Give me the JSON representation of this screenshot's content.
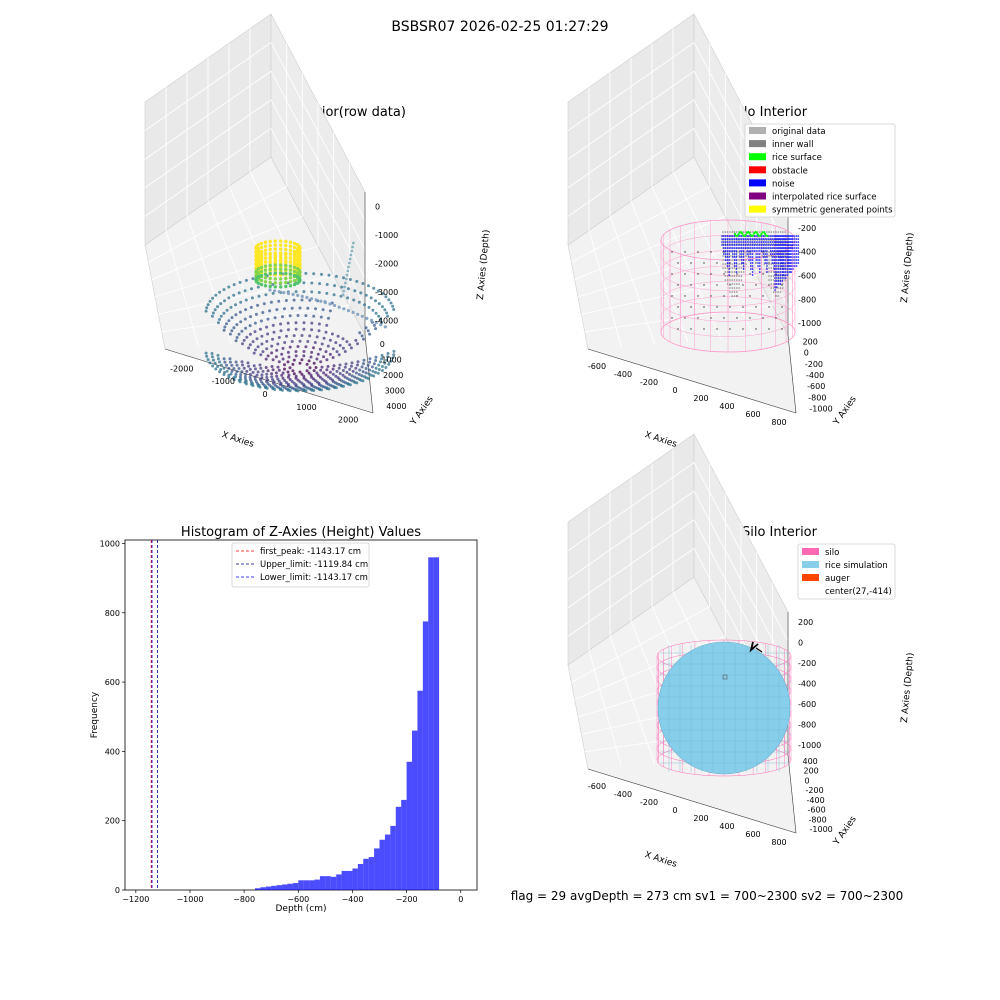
{
  "figure": {
    "suptitle": "BSBSR07 2026-02-25 01:27:29",
    "status_text": "flag = 29  avgDepth = 273 cm  sv1 = 700~2300  sv2 = 700~2300"
  },
  "chart_data": [
    {
      "id": "raw",
      "type": "scatter",
      "title": "3D Plot of Silo Interior(row data)",
      "xlabel": "X Axies",
      "ylabel": "Y Axies",
      "zlabel": "Z Axies (Depth)",
      "x_ticks": [
        "-2000",
        "-1000",
        "0",
        "1000",
        "2000"
      ],
      "y_ticks": [
        "0",
        "1000",
        "2000",
        "3000",
        "4000"
      ],
      "z_ticks": [
        "0",
        "-1000",
        "-2000",
        "-3000",
        "-4000"
      ],
      "colormap": "viridis",
      "description_free": true
    },
    {
      "id": "classify",
      "type": "scatter",
      "title": "3D classify of Silo Interior",
      "xlabel": "X Axies",
      "ylabel": "Y Axies",
      "zlabel": "Z Axies (Depth)",
      "x_ticks": [
        "-600",
        "-400",
        "-200",
        "0",
        "200",
        "400",
        "600",
        "800"
      ],
      "y_ticks": [
        "200",
        "0",
        "-200",
        "-400",
        "-600",
        "-800",
        "-1000"
      ],
      "z_ticks": [
        "0",
        "-200",
        "-400",
        "-600",
        "-800",
        "-1000"
      ],
      "legend": [
        {
          "label": "original data",
          "color": "#b0b0b0"
        },
        {
          "label": "inner wall",
          "color": "#808080"
        },
        {
          "label": "rice surface",
          "color": "#00ff00"
        },
        {
          "label": "obstacle",
          "color": "#ff0000"
        },
        {
          "label": "noise",
          "color": "#0000ff"
        },
        {
          "label": "interpolated rice surface",
          "color": "#800080"
        },
        {
          "label": "symmetric generated points",
          "color": "#ffff00"
        }
      ],
      "legend_placement": "top-right"
    },
    {
      "id": "hist",
      "type": "bar",
      "title": "Histogram of Z-Axies (Height) Values",
      "xlabel": "Depth (cm)",
      "ylabel": "Frequency",
      "xlim": [
        -1240,
        60
      ],
      "ylim": [
        0,
        1010
      ],
      "x_ticks": [
        -1200,
        -1000,
        -800,
        -600,
        -400,
        -200,
        0
      ],
      "y_ticks": [
        0,
        200,
        400,
        600,
        800,
        1000
      ],
      "bar_color": "#0000ff",
      "bin_width": 20,
      "bins": [
        [
          -760,
          5
        ],
        [
          -740,
          8
        ],
        [
          -720,
          10
        ],
        [
          -700,
          12
        ],
        [
          -680,
          14
        ],
        [
          -660,
          16
        ],
        [
          -640,
          18
        ],
        [
          -620,
          20
        ],
        [
          -600,
          28
        ],
        [
          -580,
          28
        ],
        [
          -560,
          28
        ],
        [
          -540,
          30
        ],
        [
          -520,
          40
        ],
        [
          -500,
          40
        ],
        [
          -480,
          38
        ],
        [
          -460,
          45
        ],
        [
          -440,
          55
        ],
        [
          -420,
          55
        ],
        [
          -400,
          62
        ],
        [
          -380,
          75
        ],
        [
          -360,
          90
        ],
        [
          -340,
          95
        ],
        [
          -320,
          120
        ],
        [
          -300,
          145
        ],
        [
          -280,
          160
        ],
        [
          -260,
          185
        ],
        [
          -240,
          240
        ],
        [
          -220,
          260
        ],
        [
          -200,
          370
        ],
        [
          -180,
          460
        ],
        [
          -160,
          575
        ],
        [
          -140,
          775
        ],
        [
          -120,
          960
        ],
        [
          -100,
          960
        ]
      ],
      "vlines": [
        {
          "label": "first_peak: -1143.17 cm",
          "x": -1143.17,
          "color": "#ff0000"
        },
        {
          "label": "Upper_limit: -1119.84 cm",
          "x": -1119.84,
          "color": "#00008b"
        },
        {
          "label": "Lower_limit: -1143.17 cm",
          "x": -1143.17,
          "color": "#0000ff"
        }
      ],
      "legend_placement": "top-center"
    },
    {
      "id": "sim",
      "type": "scatter",
      "title": "3D simulation of Silo Interior",
      "xlabel": "X Axies",
      "ylabel": "Y Axies",
      "zlabel": "Z Axies (Depth)",
      "x_ticks": [
        "-600",
        "-400",
        "-200",
        "0",
        "200",
        "400",
        "600",
        "800"
      ],
      "y_ticks": [
        "400",
        "200",
        "0",
        "-200",
        "-400",
        "-600",
        "-800",
        "-1000"
      ],
      "z_ticks": [
        "200",
        "0",
        "-200",
        "-400",
        "-600",
        "-800",
        "-1000"
      ],
      "legend": [
        {
          "label": "silo",
          "color": "#ff69b4"
        },
        {
          "label": "rice simulation",
          "color": "#87ceeb"
        },
        {
          "label": "auger",
          "color": "#ff4500"
        },
        {
          "label": "center(27,-414)",
          "color": ""
        }
      ],
      "legend_placement": "top-right"
    }
  ]
}
